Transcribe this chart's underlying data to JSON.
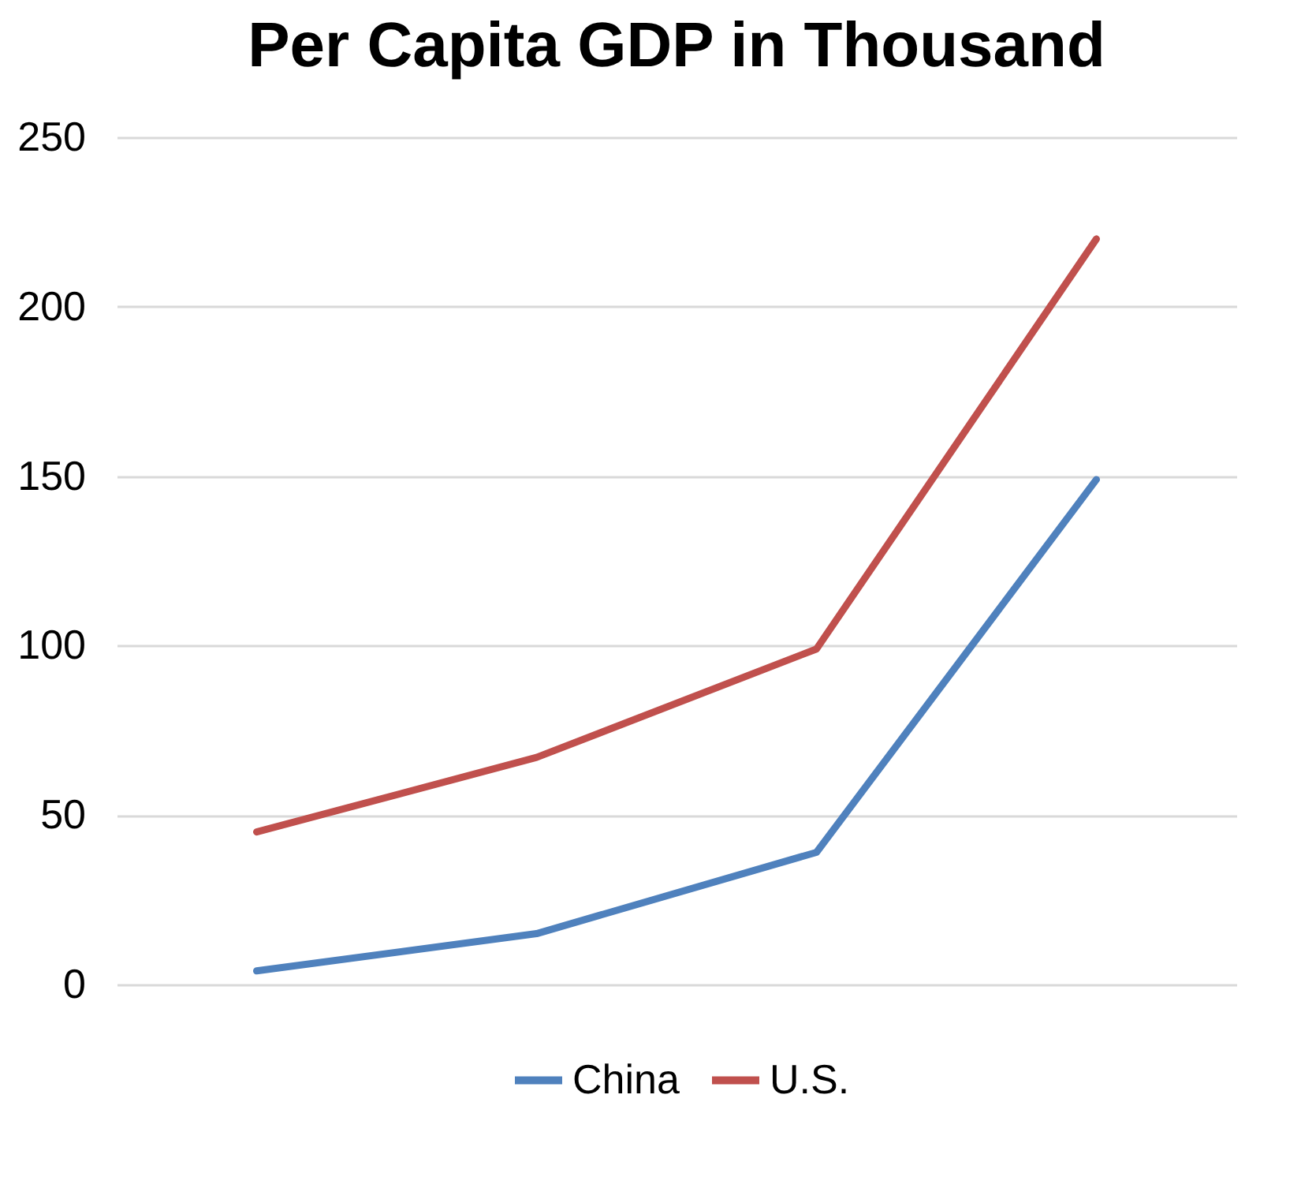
{
  "chart_data": {
    "type": "line",
    "title": "Per Capita GDP in Thousand",
    "categories": [
      null,
      null,
      null,
      null
    ],
    "series": [
      {
        "name": "China",
        "color": "#4f81bd",
        "values": [
          4,
          15,
          39,
          149
        ]
      },
      {
        "name": "U.S.",
        "color": "#c0504d",
        "values": [
          45,
          67,
          99,
          220
        ]
      }
    ],
    "ylim": [
      0,
      250
    ],
    "yticks": [
      0,
      50,
      100,
      150,
      200,
      250
    ],
    "grid": "y",
    "legend": "bottom",
    "tick_labels": "y",
    "marker": "none",
    "line_style": "solid"
  }
}
